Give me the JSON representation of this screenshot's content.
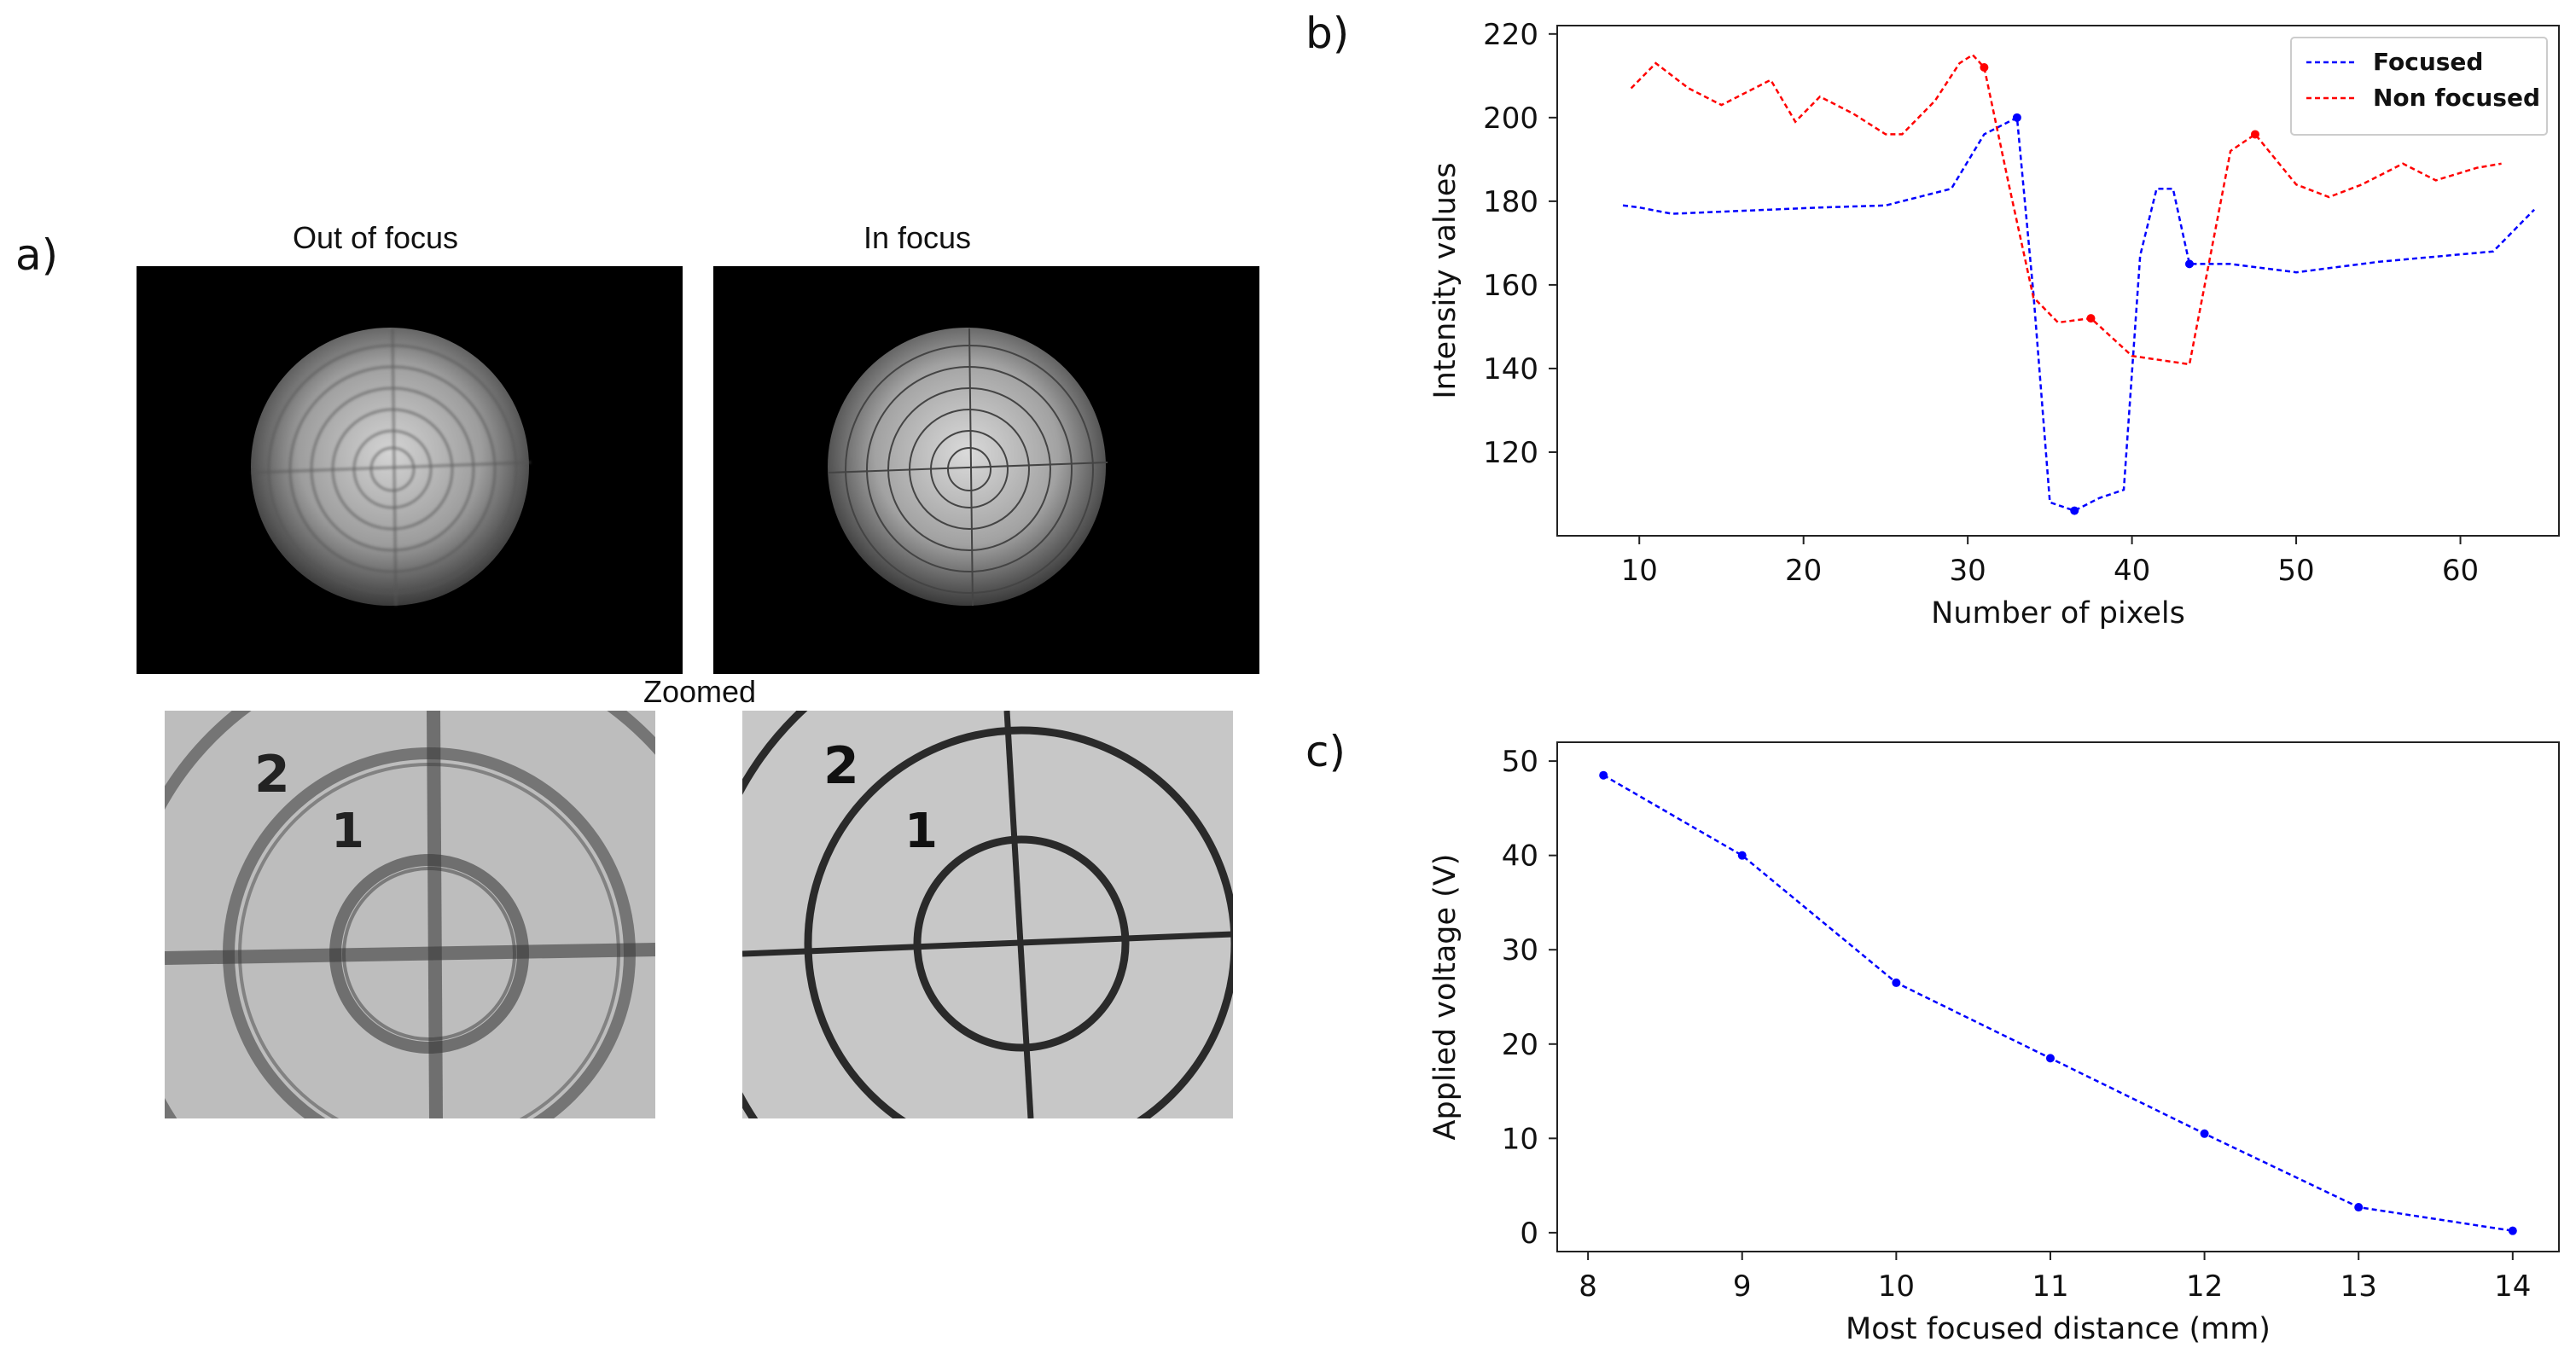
{
  "panels": {
    "a": {
      "letter": "a)",
      "captions": {
        "out_of_focus": "Out of focus",
        "in_focus": "In focus",
        "zoomed": "Zoomed"
      },
      "target_numbers": [
        "2",
        "1"
      ]
    },
    "b": {
      "letter": "b)"
    },
    "c": {
      "letter": "c)"
    }
  },
  "chart_data": [
    {
      "type": "line",
      "title": "",
      "xlabel": "Number of pixels",
      "ylabel": "Intensity values",
      "xlim": [
        5,
        66
      ],
      "ylim": [
        100,
        222
      ],
      "xticks": [
        10,
        20,
        30,
        40,
        50,
        60
      ],
      "yticks": [
        120,
        140,
        160,
        180,
        200,
        220
      ],
      "legend": "top-right",
      "grid": false,
      "series": [
        {
          "name": "Focused",
          "color": "#0000ff",
          "x": [
            9,
            10,
            12,
            15,
            18,
            21,
            25,
            29,
            31,
            33,
            34,
            35,
            36.5,
            38,
            39.5,
            40.5,
            41.5,
            42,
            42.5,
            43.5,
            46,
            50,
            55,
            62,
            64.5
          ],
          "y": [
            179,
            178.5,
            177,
            177.5,
            178,
            178.5,
            179,
            183,
            196,
            200,
            158,
            108,
            106,
            109,
            111,
            167,
            183,
            183,
            183,
            165,
            165,
            163,
            165.5,
            168,
            178
          ],
          "markers_at": [
            9,
            12,
            19
          ]
        },
        {
          "name": "Non focused",
          "color": "#ff0000",
          "x": [
            9.5,
            11,
            13,
            15,
            18,
            19.5,
            21,
            23,
            25,
            26,
            28,
            29.5,
            30.3,
            31,
            32.5,
            34,
            35.5,
            37.5,
            40,
            43.5,
            46,
            47.5,
            50,
            52,
            54,
            56.5,
            58.5,
            61,
            62.5
          ],
          "y": [
            207,
            213,
            207,
            203,
            209,
            199,
            205,
            201,
            196,
            196,
            204,
            213,
            215,
            212,
            184,
            157,
            151,
            152,
            143,
            141,
            192,
            196,
            184,
            181,
            184,
            189,
            185,
            188,
            189
          ],
          "markers_at": [
            13,
            17,
            21
          ]
        }
      ]
    },
    {
      "type": "line",
      "title": "",
      "xlabel": "Most focused distance (mm)",
      "ylabel": "Applied voltage (V)",
      "xlim": [
        7.8,
        14.3
      ],
      "ylim": [
        -2,
        52
      ],
      "xticks": [
        8,
        9,
        10,
        11,
        12,
        13,
        14
      ],
      "yticks": [
        0,
        10,
        20,
        30,
        40,
        50
      ],
      "grid": false,
      "series": [
        {
          "color": "#0000ff",
          "x": [
            8.1,
            9,
            10,
            11,
            12,
            13,
            14
          ],
          "y": [
            48.5,
            40,
            26.5,
            18.5,
            10.5,
            2.7,
            0.2
          ]
        }
      ]
    }
  ]
}
